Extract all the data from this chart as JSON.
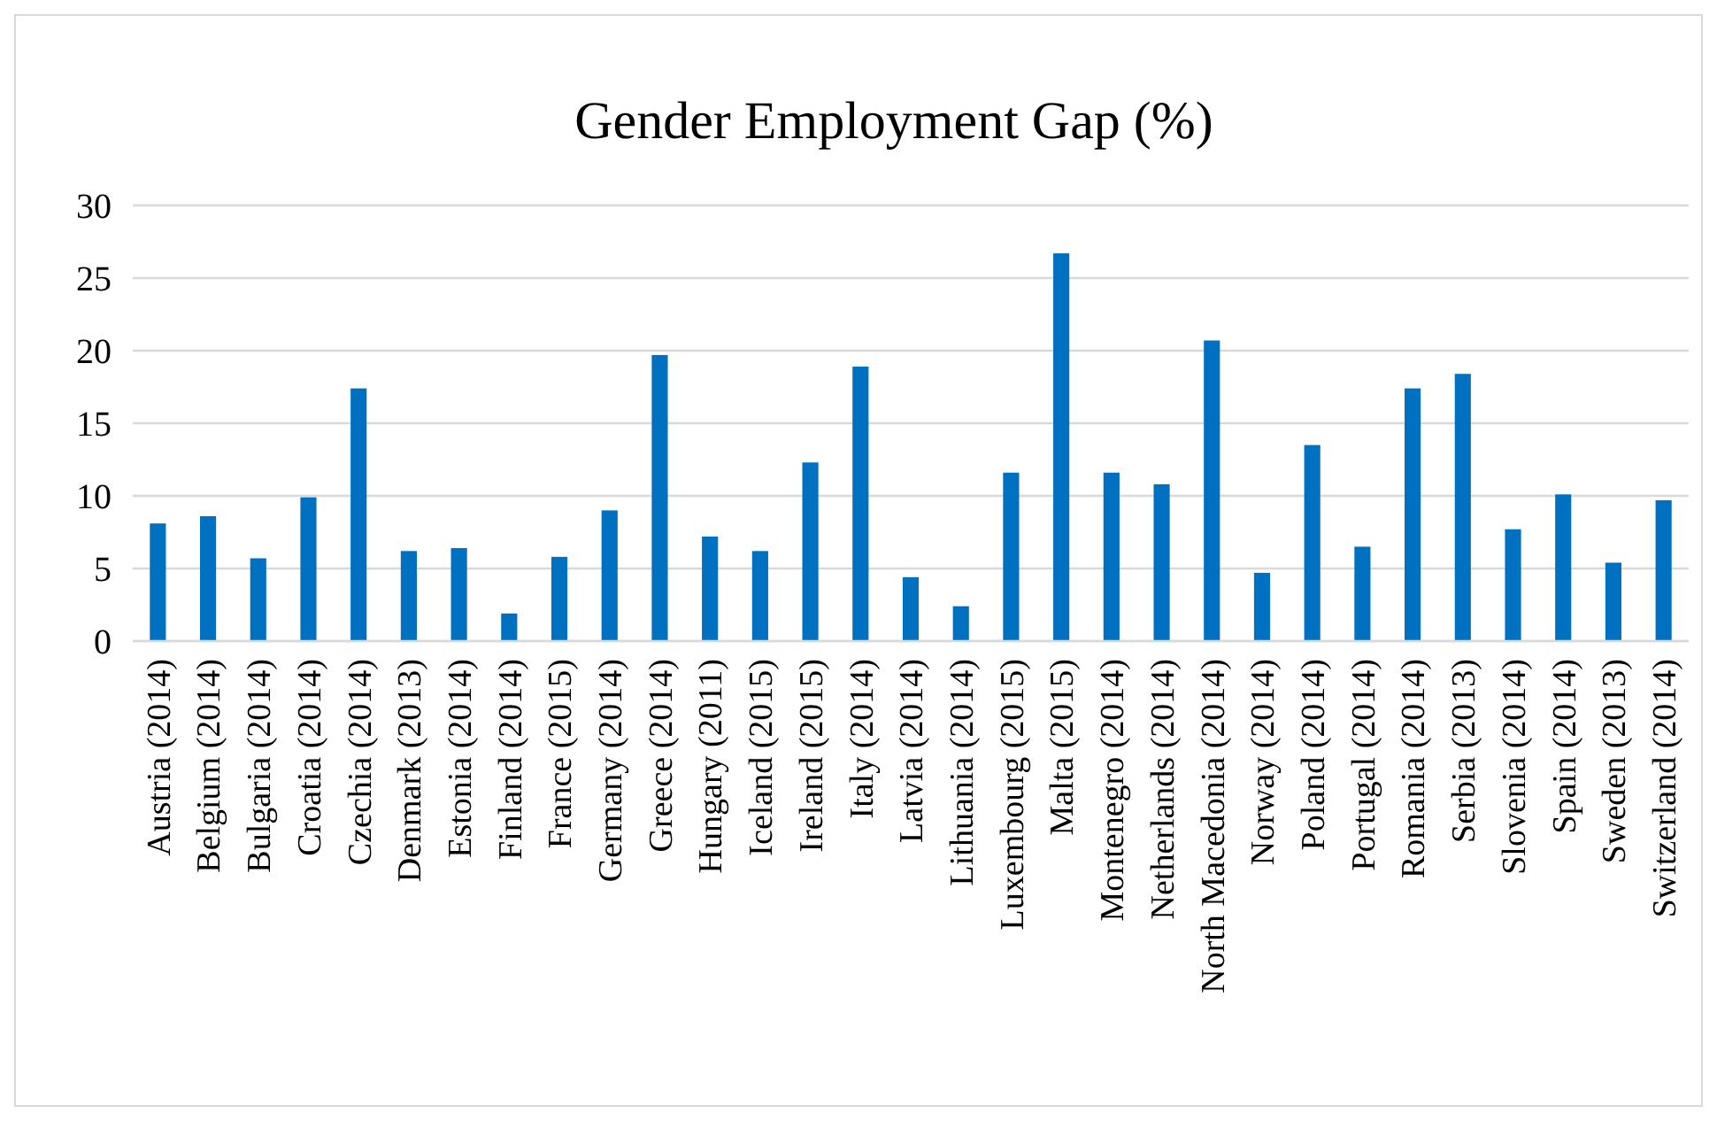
{
  "chart_data": {
    "type": "bar",
    "title": "Gender Employment Gap (%)",
    "categories": [
      "Austria (2014)",
      "Belgium (2014)",
      "Bulgaria (2014)",
      "Croatia (2014)",
      "Czechia (2014)",
      "Denmark (2013)",
      "Estonia (2014)",
      "Finland (2014)",
      "France (2015)",
      "Germany (2014)",
      "Greece (2014)",
      "Hungary (2011)",
      "Iceland (2015)",
      "Ireland (2015)",
      "Italy (2014)",
      "Latvia (2014)",
      "Lithuania (2014)",
      "Luxembourg (2015)",
      "Malta (2015)",
      "Montenegro (2014)",
      "Netherlands (2014)",
      "North Macedonia (2014)",
      "Norway (2014)",
      "Poland (2014)",
      "Portugal (2014)",
      "Romania (2014)",
      "Serbia (2013)",
      "Slovenia (2014)",
      "Spain (2014)",
      "Sweden (2013)",
      "Switzerland (2014)"
    ],
    "values": [
      8.1,
      8.6,
      5.7,
      9.9,
      17.4,
      6.2,
      6.4,
      1.9,
      5.8,
      9.0,
      19.7,
      7.2,
      6.2,
      12.3,
      18.9,
      4.4,
      2.4,
      11.6,
      26.7,
      11.6,
      10.8,
      20.7,
      4.7,
      13.5,
      6.5,
      17.4,
      18.4,
      7.7,
      10.1,
      5.4,
      9.7
    ],
    "color": "#0070c0",
    "ylim": [
      0,
      30
    ],
    "yticks": [
      0,
      5,
      10,
      15,
      20,
      25,
      30
    ],
    "grid": "y"
  }
}
